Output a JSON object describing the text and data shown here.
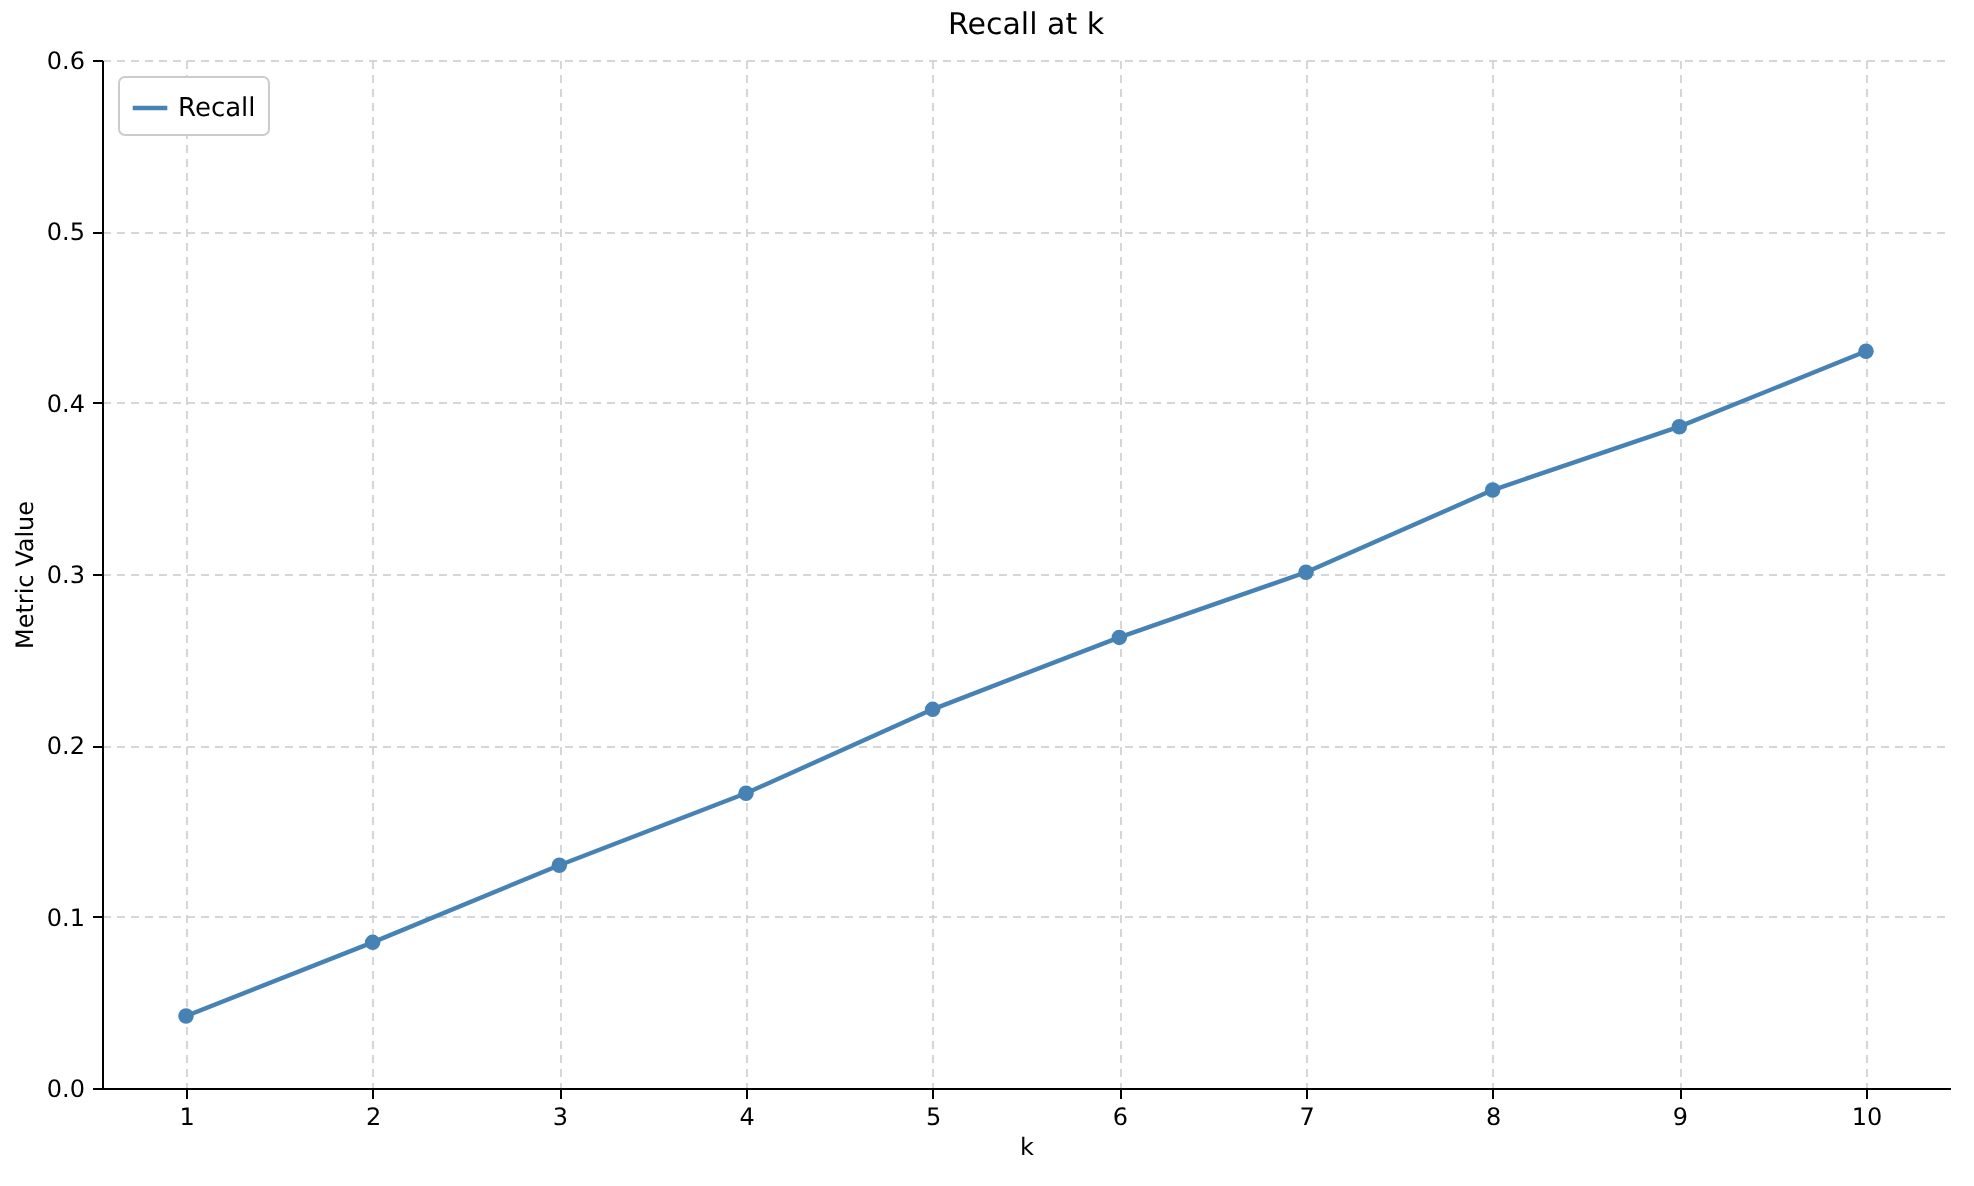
{
  "chart_data": {
    "type": "line",
    "title": "Recall at k",
    "xlabel": "k",
    "ylabel": "Metric Value",
    "x": [
      1,
      2,
      3,
      4,
      5,
      6,
      7,
      8,
      9,
      10
    ],
    "series": [
      {
        "name": "Recall",
        "color": "#4682b4",
        "values": [
          0.042,
          0.085,
          0.13,
          0.172,
          0.221,
          0.263,
          0.301,
          0.349,
          0.386,
          0.43
        ]
      }
    ],
    "xlim": [
      0.55,
      10.45
    ],
    "xticks": [
      1,
      2,
      3,
      4,
      5,
      6,
      7,
      8,
      9,
      10
    ],
    "ylim": [
      0,
      0.6
    ],
    "yticks": [
      {
        "value": 0,
        "label": "0.0"
      },
      0.1,
      0.2,
      0.3,
      0.4,
      0.5,
      0.6
    ],
    "grid": true,
    "legend": "top left",
    "marker": "circle",
    "line_style": "solid"
  }
}
